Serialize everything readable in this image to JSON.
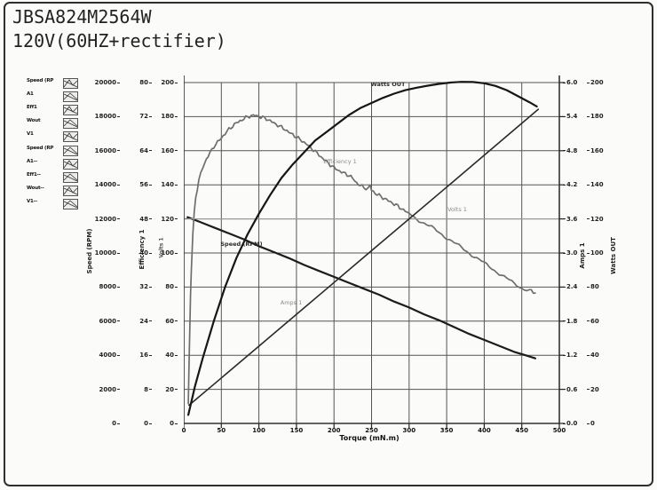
{
  "title": {
    "model": "JBSA824M2564W",
    "condition": "120V(60HZ+rectifier)"
  },
  "legend": {
    "items": [
      "Speed (RP",
      "A1",
      "Eff1",
      "Wout",
      "V1",
      "Speed (RP",
      "A1--",
      "Eff1--",
      "Wout--",
      "V1--"
    ]
  },
  "chart_data": {
    "type": "line",
    "title": "JBSA824M2564W 120V(60HZ+rectifier) motor performance curves",
    "xlabel": "Torque (mN.m)",
    "grid": true,
    "x_axis": {
      "title": "Torque (mN.m)",
      "range": [
        0,
        500
      ],
      "ticks": [
        "0",
        "50",
        "100",
        "150",
        "200",
        "250",
        "300",
        "350",
        "400",
        "450",
        "500"
      ]
    },
    "axes": [
      {
        "id": "speed",
        "title": "Speed (RPM)",
        "side": "left",
        "range": [
          0,
          20000
        ],
        "ticks": [
          "20000",
          "18000",
          "16000",
          "14000",
          "12000",
          "10000",
          "8000",
          "6000",
          "4000",
          "2000",
          "0"
        ]
      },
      {
        "id": "efficiency",
        "title": "Efficiency 1",
        "side": "left",
        "range": [
          0,
          80
        ],
        "ticks": [
          "80",
          "72",
          "64",
          "56",
          "48",
          "40",
          "32",
          "24",
          "16",
          "8",
          "0"
        ]
      },
      {
        "id": "volts",
        "title": "Volts 1",
        "side": "left",
        "range": [
          0,
          200
        ],
        "ticks": [
          "200",
          "180",
          "160",
          "140",
          "120",
          "100",
          "80",
          "60",
          "40",
          "20",
          "0"
        ]
      },
      {
        "id": "amps",
        "title": "Amps 1",
        "side": "right",
        "range": [
          0,
          6
        ],
        "ticks": [
          "6.0",
          "5.4",
          "4.8",
          "4.2",
          "3.6",
          "3.0",
          "2.4",
          "1.8",
          "1.2",
          "0.6",
          "0.0"
        ]
      },
      {
        "id": "watts",
        "title": "Watts OUT",
        "side": "right",
        "range": [
          0,
          200
        ],
        "ticks": [
          "200",
          "180",
          "160",
          "140",
          "120",
          "100",
          "80",
          "60",
          "40",
          "20",
          "0"
        ]
      }
    ],
    "series": [
      {
        "name": "Speed (RPM)",
        "axis": "speed",
        "color": "#1c1c1c",
        "width": 2.2,
        "noisy": false,
        "points": [
          [
            5,
            12100
          ],
          [
            20,
            11850
          ],
          [
            40,
            11500
          ],
          [
            60,
            11150
          ],
          [
            80,
            10800
          ],
          [
            100,
            10400
          ],
          [
            120,
            10050
          ],
          [
            140,
            9700
          ],
          [
            160,
            9300
          ],
          [
            180,
            8950
          ],
          [
            200,
            8600
          ],
          [
            220,
            8250
          ],
          [
            240,
            7900
          ],
          [
            260,
            7550
          ],
          [
            280,
            7150
          ],
          [
            300,
            6800
          ],
          [
            320,
            6400
          ],
          [
            340,
            6050
          ],
          [
            360,
            5650
          ],
          [
            380,
            5250
          ],
          [
            400,
            4900
          ],
          [
            420,
            4550
          ],
          [
            440,
            4200
          ],
          [
            455,
            4000
          ],
          [
            468,
            3820
          ]
        ]
      },
      {
        "name": "Efficiency 1",
        "axis": "efficiency",
        "color": "#6e6e6e",
        "width": 1.7,
        "noisy": true,
        "points": [
          [
            6,
            5
          ],
          [
            7,
            14
          ],
          [
            8,
            22
          ],
          [
            9,
            30
          ],
          [
            10,
            36
          ],
          [
            12,
            44
          ],
          [
            14,
            50
          ],
          [
            16,
            53
          ],
          [
            18,
            55
          ],
          [
            20,
            57
          ],
          [
            25,
            60
          ],
          [
            30,
            62
          ],
          [
            35,
            63.5
          ],
          [
            40,
            65
          ],
          [
            45,
            66
          ],
          [
            50,
            67
          ],
          [
            55,
            68
          ],
          [
            60,
            69
          ],
          [
            65,
            69.8
          ],
          [
            70,
            70.5
          ],
          [
            75,
            71
          ],
          [
            80,
            71.5
          ],
          [
            85,
            72
          ],
          [
            90,
            72.2
          ],
          [
            95,
            72.3
          ],
          [
            100,
            72
          ],
          [
            105,
            71.8
          ],
          [
            110,
            71.5
          ],
          [
            115,
            71
          ],
          [
            120,
            70.5
          ],
          [
            125,
            70
          ],
          [
            130,
            69.5
          ],
          [
            135,
            69
          ],
          [
            140,
            68.3
          ],
          [
            145,
            67.8
          ],
          [
            150,
            67.2
          ],
          [
            155,
            66.6
          ],
          [
            160,
            66
          ],
          [
            165,
            65.3
          ],
          [
            170,
            64.6
          ],
          [
            175,
            63.8
          ],
          [
            180,
            63
          ],
          [
            185,
            62.2
          ],
          [
            190,
            61.4
          ],
          [
            195,
            60.7
          ],
          [
            200,
            60
          ],
          [
            205,
            59.5
          ],
          [
            210,
            59
          ],
          [
            215,
            58.6
          ],
          [
            220,
            58.2
          ],
          [
            225,
            57.5
          ],
          [
            230,
            56.5
          ],
          [
            235,
            55.8
          ],
          [
            240,
            55.4
          ],
          [
            245,
            55
          ],
          [
            248,
            55.6
          ],
          [
            250,
            54.8
          ],
          [
            255,
            54
          ],
          [
            260,
            53.5
          ],
          [
            265,
            53
          ],
          [
            270,
            52.5
          ],
          [
            275,
            52
          ],
          [
            280,
            51.5
          ],
          [
            285,
            51
          ],
          [
            290,
            50.4
          ],
          [
            295,
            49.8
          ],
          [
            300,
            49.2
          ],
          [
            310,
            48
          ],
          [
            320,
            47
          ],
          [
            330,
            46
          ],
          [
            340,
            44.8
          ],
          [
            350,
            43.6
          ],
          [
            360,
            42.4
          ],
          [
            370,
            41.2
          ],
          [
            380,
            40
          ],
          [
            390,
            38.8
          ],
          [
            400,
            37.6
          ],
          [
            410,
            36.4
          ],
          [
            420,
            35.2
          ],
          [
            430,
            34
          ],
          [
            440,
            32.8
          ],
          [
            450,
            31.8
          ],
          [
            460,
            31.2
          ],
          [
            468,
            30.6
          ]
        ]
      },
      {
        "name": "Volts 1",
        "axis": "volts",
        "color": "#9a9a9a",
        "width": 1.1,
        "noisy": false,
        "points": [
          [
            5,
            120
          ],
          [
            498,
            120
          ]
        ]
      },
      {
        "name": "Amps 1",
        "axis": "amps",
        "color": "#2a2a2a",
        "width": 1.6,
        "noisy": false,
        "points": [
          [
            7,
            0.32
          ],
          [
            50,
            0.8
          ],
          [
            100,
            1.36
          ],
          [
            150,
            1.92
          ],
          [
            200,
            2.48
          ],
          [
            250,
            3.04
          ],
          [
            300,
            3.6
          ],
          [
            350,
            4.16
          ],
          [
            400,
            4.72
          ],
          [
            440,
            5.17
          ],
          [
            472,
            5.53
          ]
        ]
      },
      {
        "name": "Watts OUT",
        "axis": "watts",
        "color": "#161616",
        "width": 2.2,
        "noisy": false,
        "points": [
          [
            6,
            5
          ],
          [
            15,
            22
          ],
          [
            25,
            38
          ],
          [
            40,
            60
          ],
          [
            55,
            80
          ],
          [
            70,
            97
          ],
          [
            85,
            111
          ],
          [
            100,
            123
          ],
          [
            115,
            134
          ],
          [
            130,
            144
          ],
          [
            145,
            152
          ],
          [
            160,
            159
          ],
          [
            175,
            166
          ],
          [
            190,
            171
          ],
          [
            205,
            176
          ],
          [
            220,
            181
          ],
          [
            235,
            185
          ],
          [
            250,
            188
          ],
          [
            265,
            191
          ],
          [
            280,
            193.5
          ],
          [
            295,
            195.5
          ],
          [
            310,
            197
          ],
          [
            325,
            198.2
          ],
          [
            340,
            199.2
          ],
          [
            355,
            200
          ],
          [
            370,
            200.4
          ],
          [
            385,
            200.3
          ],
          [
            400,
            199.6
          ],
          [
            415,
            198
          ],
          [
            430,
            195.5
          ],
          [
            445,
            192
          ],
          [
            460,
            188.5
          ],
          [
            470,
            186
          ]
        ]
      }
    ],
    "annotations": [
      {
        "text": "Watts OUT",
        "x": 230,
        "y": 10,
        "tone": "dark"
      },
      {
        "text": "Efficiency 1",
        "x": 176,
        "y": 97,
        "tone": "faint"
      },
      {
        "text": "Volts 1",
        "x": 308,
        "y": 151,
        "tone": "faint"
      },
      {
        "text": "Speed (RPM)",
        "x": 65,
        "y": 190,
        "tone": "dark"
      },
      {
        "text": "Amps 1",
        "x": 121,
        "y": 256,
        "tone": "faint"
      }
    ],
    "colors": {
      "grid": "#555555",
      "spine": "#333333"
    }
  }
}
